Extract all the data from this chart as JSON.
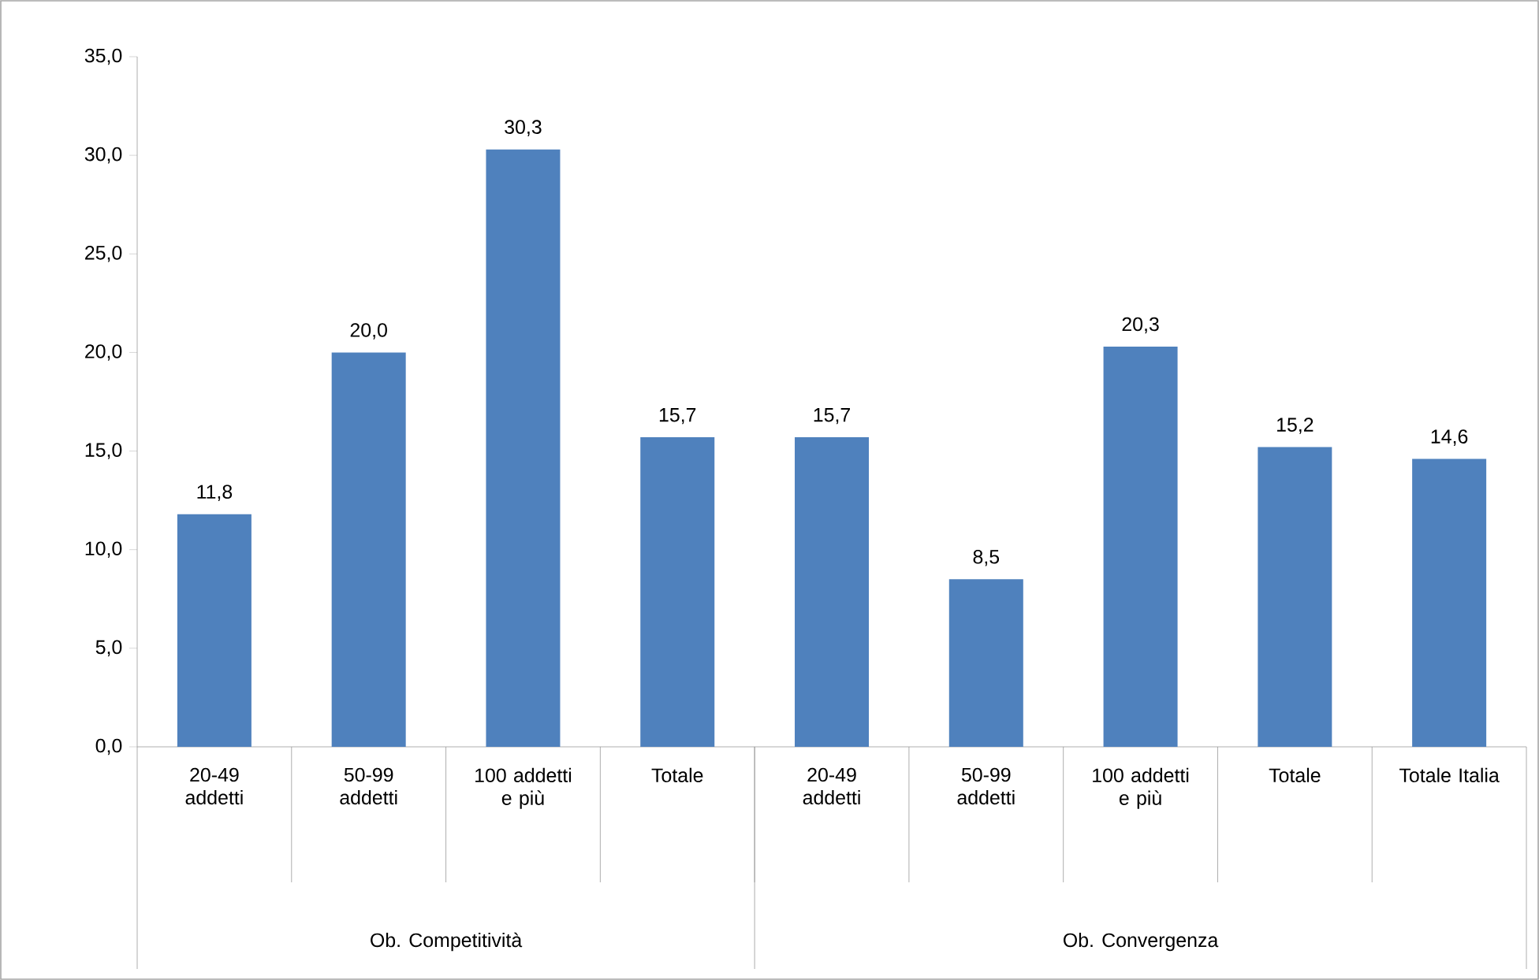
{
  "chart_data": {
    "type": "bar",
    "categories": [
      "20-49 addetti",
      "50-99 addetti",
      "100 addetti e più",
      "Totale",
      "20-49 addetti",
      "50-99 addetti",
      "100 addetti e più",
      "Totale",
      "Totale Italia"
    ],
    "values": [
      11.8,
      20.0,
      30.3,
      15.7,
      15.7,
      8.5,
      20.3,
      15.2,
      14.6
    ],
    "value_labels": [
      "11,8",
      "20,0",
      "30,3",
      "15,7",
      "15,7",
      "8,5",
      "20,3",
      "15,2",
      "14,6"
    ],
    "color": "#4f81bd",
    "ylim": [
      0,
      35
    ],
    "yticks": [
      {
        "value": 0,
        "label": "0,0"
      },
      {
        "value": 5,
        "label": "5,0"
      },
      {
        "value": 10,
        "label": "10,0"
      },
      {
        "value": 15,
        "label": "15,0"
      },
      {
        "value": 20,
        "label": "20,0"
      },
      {
        "value": 25,
        "label": "25,0"
      },
      {
        "value": 30,
        "label": "30,0"
      },
      {
        "value": 35,
        "label": "35,0"
      }
    ],
    "annotations": [
      "Ob. Competitività",
      "Ob. Convergenza"
    ],
    "grid": false
  }
}
